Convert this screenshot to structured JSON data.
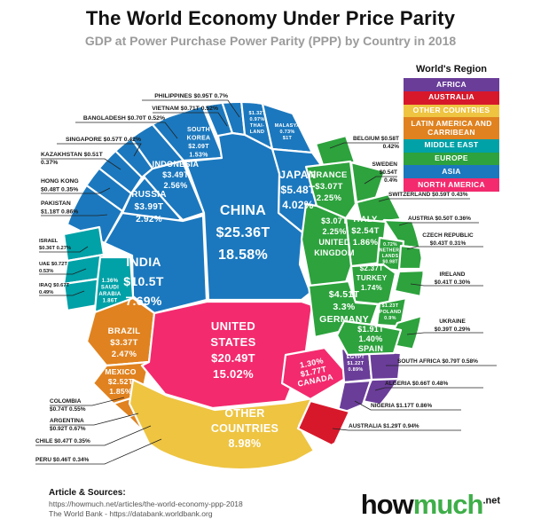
{
  "title": "The World Economy Under Price Parity",
  "subtitle": "GDP at Power Purchase Power Parity (PPP) by Country in 2018",
  "legend": {
    "title": "World's Region",
    "items": [
      {
        "label": "AFRICA",
        "color": "#6a3d99"
      },
      {
        "label": "AUSTRALIA",
        "color": "#d7182b"
      },
      {
        "label": "OTHER COUNTRIES",
        "color": "#eec441"
      },
      {
        "label": "LATIN AMERICA AND CARRIBEAN",
        "color": "#e0821f"
      },
      {
        "label": "MIDDLE EAST",
        "color": "#00a1a7"
      },
      {
        "label": "EUROPE",
        "color": "#2da23d"
      },
      {
        "label": "ASIA",
        "color": "#1b78be"
      },
      {
        "label": "NORTH AMERICA",
        "color": "#f32a6e"
      }
    ]
  },
  "footer": {
    "heading": "Article & Sources:",
    "source1": "https://howmuch.net/articles/the-world-economy-ppp-2018",
    "source2": "The World Bank - https://databank.worldbank.org"
  },
  "logo": {
    "part1": "how",
    "part2": "much",
    "suffix": ".net"
  },
  "chart_data": {
    "type": "voronoi-treemap",
    "unit": "trillion USD at purchasing power parity, share of world GDP",
    "year": "2018",
    "countries": [
      {
        "id": "china",
        "name": "CHINA",
        "region": "ASIA",
        "value": "$25.36T",
        "value_trillion_usd": 25.36,
        "share": "18.58%",
        "share_pct": 18.58,
        "cell_lines": [
          "CHINA",
          "$25.36T",
          "18.58%"
        ]
      },
      {
        "id": "unitedstates",
        "name": "UNITED STATES",
        "region": "NORTH AMERICA",
        "value": "$20.49T",
        "value_trillion_usd": 20.49,
        "share": "15.02%",
        "share_pct": 15.02,
        "cell_lines": [
          "UNITED",
          "STATES",
          "$20.49T",
          "15.02%"
        ]
      },
      {
        "id": "india",
        "name": "INDIA",
        "region": "ASIA",
        "value": "$10.5T",
        "value_trillion_usd": 10.5,
        "share": "7.69%",
        "share_pct": 7.69,
        "cell_lines": [
          "INDIA",
          "$10.5T",
          "7.69%"
        ]
      },
      {
        "id": "othercountries",
        "name": "OTHER COUNTRIES",
        "region": "OTHER COUNTRIES",
        "value": "",
        "value_trillion_usd": null,
        "share": "8.98%",
        "share_pct": 8.98,
        "cell_lines": [
          "OTHER",
          "COUNTRIES",
          "8.98%"
        ]
      },
      {
        "id": "japan",
        "name": "JAPAN",
        "region": "ASIA",
        "value": "$5.48T",
        "value_trillion_usd": 5.48,
        "share": "4.02%",
        "share_pct": 4.02,
        "cell_lines": [
          "JAPAN",
          "$5.48T",
          "4.02%"
        ]
      },
      {
        "id": "germany",
        "name": "GERMANY",
        "region": "EUROPE",
        "value": "$4.51T",
        "value_trillion_usd": 4.51,
        "share": "3.3%",
        "share_pct": 3.3,
        "cell_lines": [
          "$4.51T",
          "3.3%",
          "GERMANY"
        ]
      },
      {
        "id": "russia",
        "name": "RUSSIA",
        "region": "ASIA",
        "value": "$3.99T",
        "value_trillion_usd": 3.99,
        "share": "2.92%",
        "share_pct": 2.92,
        "cell_lines": [
          "RUSSIA",
          "$3.99T",
          "2.92%"
        ]
      },
      {
        "id": "indonesia",
        "name": "INDONESIA",
        "region": "ASIA",
        "value": "$3.49T",
        "value_trillion_usd": 3.49,
        "share": "2.56%",
        "share_pct": 2.56,
        "cell_lines": [
          "INDONESIA",
          "$3.49T",
          "2.56%"
        ]
      },
      {
        "id": "brazil",
        "name": "BRAZIL",
        "region": "LATIN AMERICA AND CARRIBEAN",
        "value": "$3.37T",
        "value_trillion_usd": 3.37,
        "share": "2.47%",
        "share_pct": 2.47,
        "cell_lines": [
          "BRAZIL",
          "$3.37T",
          "2.47%"
        ]
      },
      {
        "id": "unitedkingdom",
        "name": "UNITED KINGDOM",
        "region": "EUROPE",
        "value": "$3.07T",
        "value_trillion_usd": 3.07,
        "share": "2.25%",
        "share_pct": 2.25,
        "cell_lines": [
          "$3.07T",
          "2.25%",
          "UNITED",
          "KINGDOM"
        ]
      },
      {
        "id": "france",
        "name": "FRANCE",
        "region": "EUROPE",
        "value": "$3.07T",
        "value_trillion_usd": 3.07,
        "share": "2.25%",
        "share_pct": 2.25,
        "cell_lines": [
          "FRANCE",
          "$3.07T",
          "2.25%"
        ]
      },
      {
        "id": "italy",
        "name": "ITALY",
        "region": "EUROPE",
        "value": "$2.54T",
        "value_trillion_usd": 2.54,
        "share": "1.86%",
        "share_pct": 1.86,
        "cell_lines": [
          "ITALY",
          "$2.54T",
          "1.86%"
        ]
      },
      {
        "id": "mexico",
        "name": "MEXICO",
        "region": "LATIN AMERICA AND CARRIBEAN",
        "value": "$2.52T",
        "value_trillion_usd": 2.52,
        "share": "1.85%",
        "share_pct": 1.85,
        "cell_lines": [
          "MEXICO",
          "$2.52T",
          "1.85%"
        ]
      },
      {
        "id": "turkey",
        "name": "TURKEY",
        "region": "EUROPE",
        "value": "$2.37T",
        "value_trillion_usd": 2.37,
        "share": "1.74%",
        "share_pct": 1.74,
        "cell_lines": [
          "$2.37T",
          "TURKEY",
          "1.74%"
        ]
      },
      {
        "id": "southkorea",
        "name": "SOUTH KOREA",
        "region": "ASIA",
        "value": "$2.09T",
        "value_trillion_usd": 2.09,
        "share": "1.53%",
        "share_pct": 1.53,
        "cell_lines": [
          "SOUTH",
          "KOREA",
          "$2.09T",
          "1.53%"
        ]
      },
      {
        "id": "spain",
        "name": "SPAIN",
        "region": "EUROPE",
        "value": "$1.91T",
        "value_trillion_usd": 1.91,
        "share": "1.40%",
        "share_pct": 1.4,
        "cell_lines": [
          "$1.91T",
          "1.40%",
          "SPAIN"
        ]
      },
      {
        "id": "saudiarabia",
        "name": "SAUDI ARABIA",
        "region": "MIDDLE EAST",
        "value": "$1.86T",
        "value_trillion_usd": 1.86,
        "share": "1.36%",
        "share_pct": 1.36,
        "cell_lines": [
          "1.36%",
          "SAUDI",
          "ARABIA",
          "1.86T"
        ]
      },
      {
        "id": "canada",
        "name": "CANADA",
        "region": "NORTH AMERICA",
        "value": "$1.77T",
        "value_trillion_usd": 1.77,
        "share": "1.30%",
        "share_pct": 1.3,
        "cell_lines": [
          "1.30%",
          "$1.77T",
          "CANADA"
        ]
      },
      {
        "id": "thailand",
        "name": "THAILAND",
        "region": "ASIA",
        "value": "$1.32T",
        "value_trillion_usd": 1.32,
        "share": "0.97%",
        "share_pct": 0.97,
        "cell_lines": [
          "$1.32T",
          "0.97%",
          "THAI-",
          "LAND"
        ]
      },
      {
        "id": "australia",
        "name": "AUSTRALIA",
        "region": "AUSTRALIA",
        "value": "$1.29T",
        "value_trillion_usd": 1.29,
        "share": "0.94%",
        "share_pct": 0.94,
        "label_lines": [
          "AUSTRALIA  $1.29T  0.94%"
        ]
      },
      {
        "id": "poland",
        "name": "POLAND",
        "region": "EUROPE",
        "value": "$1.23T",
        "value_trillion_usd": 1.23,
        "share": "0.9%",
        "share_pct": 0.9,
        "cell_lines": [
          "$1.23T",
          "POLAND",
          "0.9%"
        ]
      },
      {
        "id": "egypt",
        "name": "EGYPT",
        "region": "AFRICA",
        "value": "$1.22T",
        "value_trillion_usd": 1.22,
        "share": "0.89%",
        "share_pct": 0.89,
        "cell_lines": [
          "EGYPT",
          "$1.22T",
          "0.89%"
        ]
      },
      {
        "id": "pakistan",
        "name": "PAKISTAN",
        "region": "ASIA",
        "value": "$1.18T",
        "value_trillion_usd": 1.18,
        "share": "0.86%",
        "share_pct": 0.86,
        "label_lines": [
          "PAKISTAN",
          "$1.18T  0.86%"
        ]
      },
      {
        "id": "nigeria",
        "name": "NIGERIA",
        "region": "AFRICA",
        "value": "$1.17T",
        "value_trillion_usd": 1.17,
        "share": "0.86%",
        "share_pct": 0.86,
        "label_lines": [
          "NIGERIA $1.17T 0.86%"
        ]
      },
      {
        "id": "malaysia",
        "name": "MALAYSIA",
        "region": "ASIA",
        "value": "$1T",
        "value_trillion_usd": 1.0,
        "share": "0.73%",
        "share_pct": 0.73,
        "cell_lines": [
          "MALASYA",
          "0.73%",
          "$1T"
        ]
      },
      {
        "id": "netherlands",
        "name": "NETHERLANDS",
        "region": "EUROPE",
        "value": "$0.98T",
        "value_trillion_usd": 0.98,
        "share": "0.72%",
        "share_pct": 0.72,
        "cell_lines": [
          "0.72%",
          "NETHER-",
          "LANDS",
          "$0.98T"
        ]
      },
      {
        "id": "philippines",
        "name": "PHILIPPINES",
        "region": "ASIA",
        "value": "$0.95T",
        "value_trillion_usd": 0.95,
        "share": "0.7%",
        "share_pct": 0.7,
        "label_lines": [
          "PHILIPPINES $0.95T  0.7%"
        ]
      },
      {
        "id": "argentina",
        "name": "ARGENTINA",
        "region": "LATIN AMERICA AND CARRIBEAN",
        "value": "$0.92T",
        "value_trillion_usd": 0.92,
        "share": "0.67%",
        "share_pct": 0.67,
        "label_lines": [
          "ARGENTINA",
          "$0.92T 0.67%"
        ]
      },
      {
        "id": "southafrica",
        "name": "SOUTH AFRICA",
        "region": "AFRICA",
        "value": "$0.79T",
        "value_trillion_usd": 0.79,
        "share": "0.58%",
        "share_pct": 0.58,
        "label_lines": [
          "SOUTH AFRICA $0.79T 0.58%"
        ]
      },
      {
        "id": "colombia",
        "name": "COLOMBIA",
        "region": "LATIN AMERICA AND CARRIBEAN",
        "value": "$0.74T",
        "value_trillion_usd": 0.74,
        "share": "0.55%",
        "share_pct": 0.55,
        "label_lines": [
          "COLOMBIA",
          "$0.74T 0.55%"
        ]
      },
      {
        "id": "uae",
        "name": "UAE",
        "region": "MIDDLE EAST",
        "value": "$0.72T",
        "value_trillion_usd": 0.72,
        "share": "0.53%",
        "share_pct": 0.53,
        "label_lines": [
          "UAE $0.72T",
          "0.53%"
        ]
      },
      {
        "id": "vietnam",
        "name": "VIETNAM",
        "region": "ASIA",
        "value": "$0.71T",
        "value_trillion_usd": 0.71,
        "share": "0.52%",
        "share_pct": 0.52,
        "label_lines": [
          "VIETNAM $0.71T  0.52%"
        ]
      },
      {
        "id": "bangladesh",
        "name": "BANGLADESH",
        "region": "ASIA",
        "value": "$0.70T",
        "value_trillion_usd": 0.7,
        "share": "0.52%",
        "share_pct": 0.52,
        "label_lines": [
          "BANGLADESH $0.70T  0.52%"
        ]
      },
      {
        "id": "iraq",
        "name": "IRAQ",
        "region": "MIDDLE EAST",
        "value": "$0.67T",
        "value_trillion_usd": 0.67,
        "share": "0.49%",
        "share_pct": 0.49,
        "label_lines": [
          "IRAQ $0.67T",
          "0.49%"
        ]
      },
      {
        "id": "algeria",
        "name": "ALGERIA",
        "region": "AFRICA",
        "value": "$0.66T",
        "value_trillion_usd": 0.66,
        "share": "0.48%",
        "share_pct": 0.48,
        "label_lines": [
          "ALGERIA $0.66T  0.48%"
        ]
      },
      {
        "id": "switzerland",
        "name": "SWITZERLAND",
        "region": "EUROPE",
        "value": "$0.59T",
        "value_trillion_usd": 0.59,
        "share": "0.43%",
        "share_pct": 0.43,
        "label_lines": [
          "SWITZERLAND  $0.59T 0.43%"
        ]
      },
      {
        "id": "belgium",
        "name": "BELGIUM",
        "region": "EUROPE",
        "value": "$0.58T",
        "value_trillion_usd": 0.58,
        "share": "0.42%",
        "share_pct": 0.42,
        "label_lines": [
          "BELGIUM  $0.58T",
          "0.42%"
        ]
      },
      {
        "id": "singapore",
        "name": "SINGAPORE",
        "region": "ASIA",
        "value": "$0.57T",
        "value_trillion_usd": 0.57,
        "share": "0.42%",
        "share_pct": 0.42,
        "label_lines": [
          "SINGAPORE $0.57T  0.42%"
        ]
      },
      {
        "id": "sweden",
        "name": "SWEDEN",
        "region": "EUROPE",
        "value": "$0.54T",
        "value_trillion_usd": 0.54,
        "share": "0.4%",
        "share_pct": 0.4,
        "label_lines": [
          "SWEDEN",
          "$0.54T",
          "0.4%"
        ]
      },
      {
        "id": "kazakhstan",
        "name": "KAZAKHSTAN",
        "region": "ASIA",
        "value": "$0.51T",
        "value_trillion_usd": 0.51,
        "share": "0.37%",
        "share_pct": 0.37,
        "label_lines": [
          "KAZAKHSTAN $0.51T",
          "0.37%"
        ]
      },
      {
        "id": "austria",
        "name": "AUSTRIA",
        "region": "EUROPE",
        "value": "$0.50T",
        "value_trillion_usd": 0.5,
        "share": "0.36%",
        "share_pct": 0.36,
        "label_lines": [
          "AUSTRIA  $0.50T 0.36%"
        ]
      },
      {
        "id": "hongkong",
        "name": "HONG KONG",
        "region": "ASIA",
        "value": "$0.48T",
        "value_trillion_usd": 0.48,
        "share": "0.35%",
        "share_pct": 0.35,
        "label_lines": [
          "HONG KONG",
          "$0.48T  0.35%"
        ]
      },
      {
        "id": "chile",
        "name": "CHILE",
        "region": "LATIN AMERICA AND CARRIBEAN",
        "value": "$0.47T",
        "value_trillion_usd": 0.47,
        "share": "0.35%",
        "share_pct": 0.35,
        "label_lines": [
          "CHILE $0.47T  0.35%"
        ]
      },
      {
        "id": "peru",
        "name": "PERU",
        "region": "LATIN AMERICA AND CARRIBEAN",
        "value": "$0.46T",
        "value_trillion_usd": 0.46,
        "share": "0.34%",
        "share_pct": 0.34,
        "label_lines": [
          "PERU $0.46T  0.34%"
        ]
      },
      {
        "id": "czech",
        "name": "CZECH REPUBLIC",
        "region": "EUROPE",
        "value": "$0.43T",
        "value_trillion_usd": 0.43,
        "share": "0.31%",
        "share_pct": 0.31,
        "label_lines": [
          "CZECH REPUBLIC",
          "$0.43T 0.31%"
        ]
      },
      {
        "id": "ireland",
        "name": "IRELAND",
        "region": "EUROPE",
        "value": "$0.41T",
        "value_trillion_usd": 0.41,
        "share": "0.30%",
        "share_pct": 0.3,
        "label_lines": [
          "IRELAND",
          "$0.41T 0.30%"
        ]
      },
      {
        "id": "ukraine",
        "name": "UKRAINE",
        "region": "EUROPE",
        "value": "$0.39T",
        "value_trillion_usd": 0.39,
        "share": "0.29%",
        "share_pct": 0.29,
        "label_lines": [
          "UKRAINE",
          "$0.39T 0.29%"
        ]
      },
      {
        "id": "israel",
        "name": "ISRAEL",
        "region": "MIDDLE EAST",
        "value": "$0.36T",
        "value_trillion_usd": 0.36,
        "share": "0.27%",
        "share_pct": 0.27,
        "label_lines": [
          "ISRAEL",
          "$0.36T 0.27%"
        ]
      }
    ]
  }
}
